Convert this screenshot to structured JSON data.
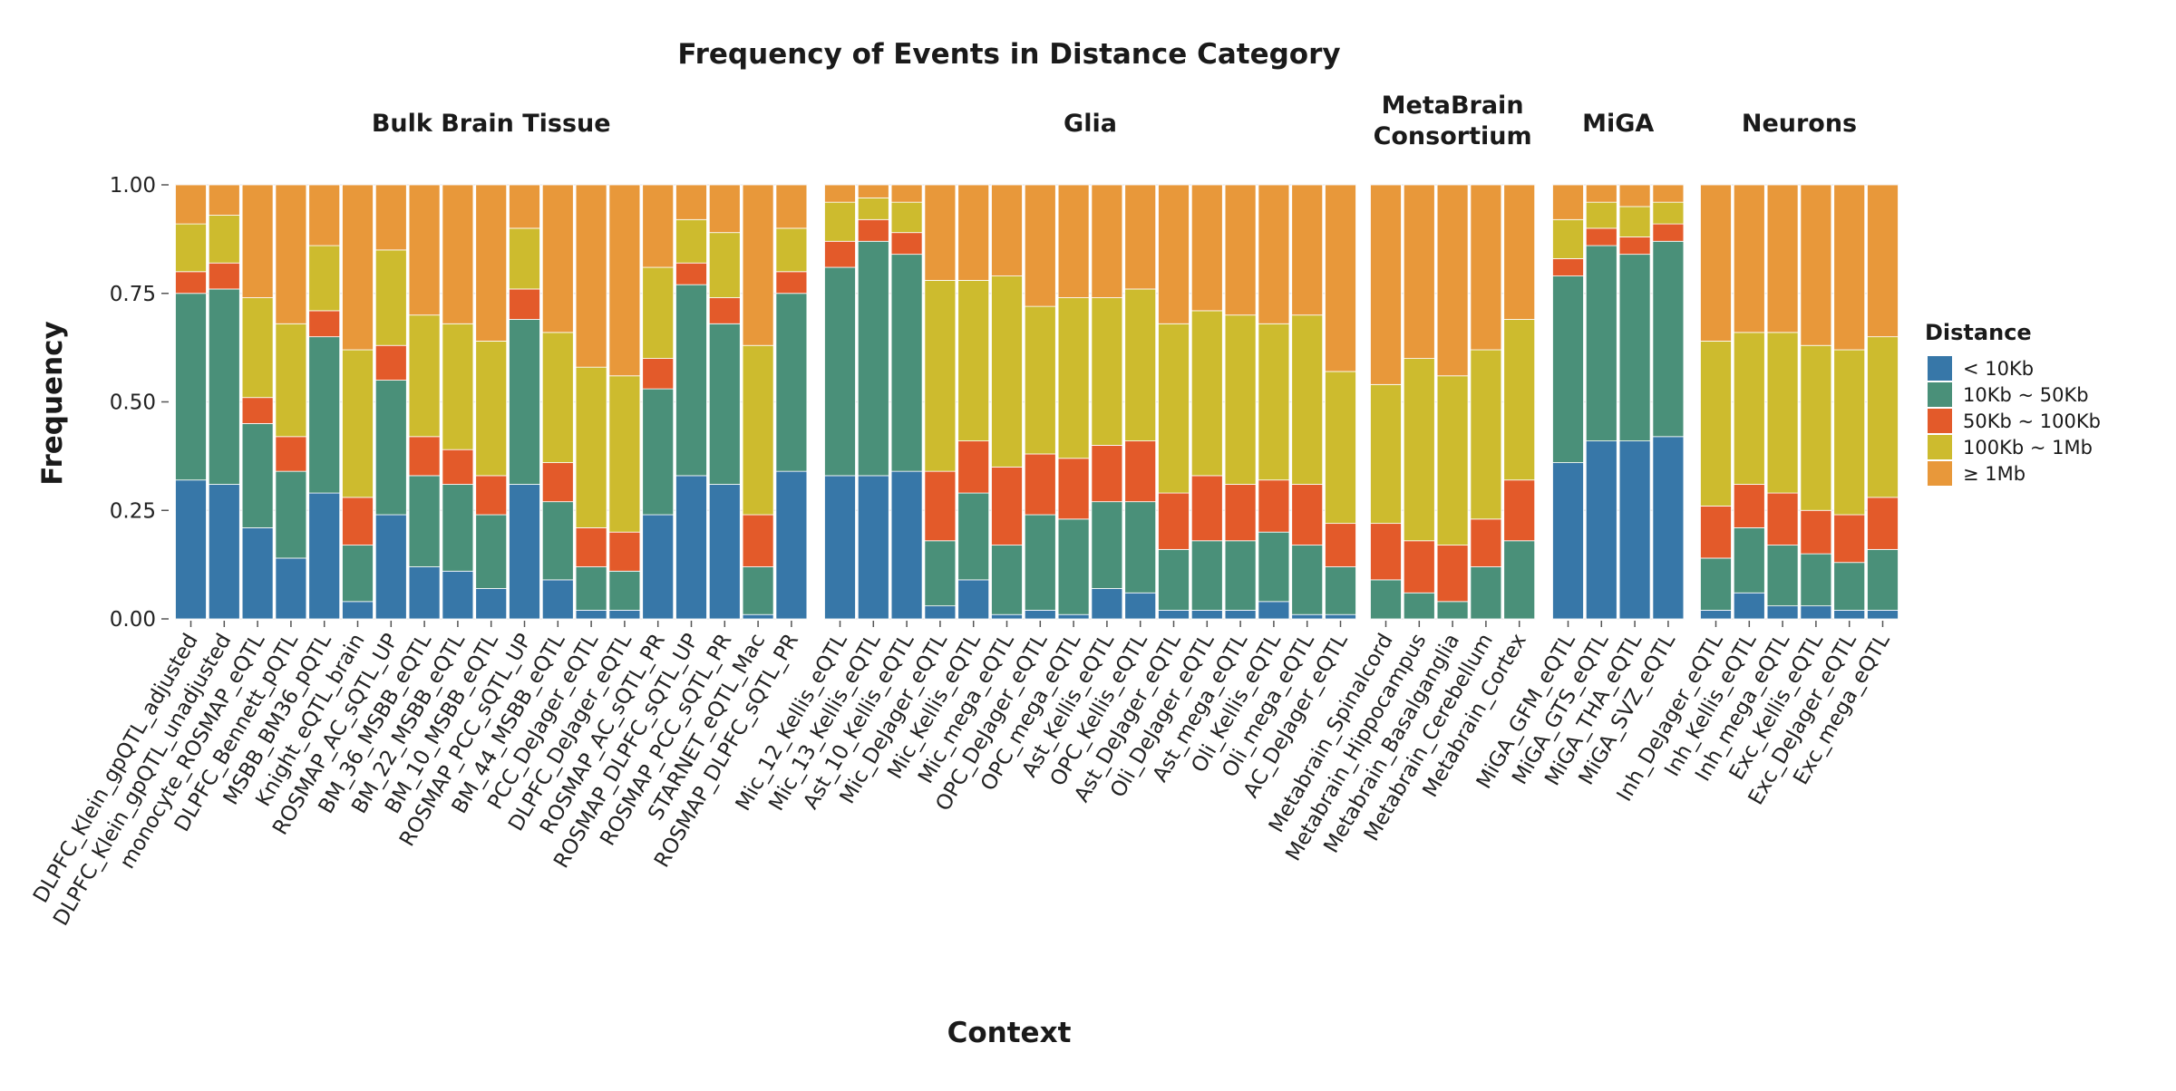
{
  "chart_data": {
    "type": "bar",
    "stacked": true,
    "normalized": true,
    "title": "Frequency of Events in Distance Category",
    "xlabel": "Context",
    "ylabel": "Frequency",
    "ylim": [
      0,
      1
    ],
    "yticks": [
      "0.00",
      "0.25",
      "0.50",
      "0.75",
      "1.00"
    ],
    "grid": true,
    "legend": {
      "title": "Distance",
      "placement": "right",
      "entries": [
        "< 10Kb",
        "10Kb ~ 50Kb",
        "50Kb ~ 100Kb",
        "100Kb ~ 1Mb",
        "≥ 1Mb"
      ]
    },
    "colors": [
      "#3777a8",
      "#4a9079",
      "#e35a2a",
      "#cdbb2e",
      "#e8983a"
    ],
    "facets": [
      {
        "title_lines": [
          "Bulk Brain Tissue"
        ],
        "bars": [
          {
            "name": "DLPFC_Klein_gpQTL_adjusted",
            "values": [
              0.32,
              0.43,
              0.05,
              0.11,
              0.09
            ]
          },
          {
            "name": "DLPFC_Klein_gpQTL_unadjusted",
            "values": [
              0.31,
              0.45,
              0.06,
              0.11,
              0.07
            ]
          },
          {
            "name": "monocyte_ROSMAP_eQTL",
            "values": [
              0.21,
              0.24,
              0.06,
              0.23,
              0.26
            ]
          },
          {
            "name": "DLPFC_Bennett_pQTL",
            "values": [
              0.14,
              0.2,
              0.08,
              0.26,
              0.32
            ]
          },
          {
            "name": "MSBB_BM36_pQTL",
            "values": [
              0.29,
              0.36,
              0.06,
              0.15,
              0.14
            ]
          },
          {
            "name": "Knight_eQTL_brain",
            "values": [
              0.04,
              0.13,
              0.11,
              0.34,
              0.38
            ]
          },
          {
            "name": "ROSMAP_AC_sQTL_UP",
            "values": [
              0.24,
              0.31,
              0.08,
              0.22,
              0.15
            ]
          },
          {
            "name": "BM_36_MSBB_eQTL",
            "values": [
              0.12,
              0.21,
              0.09,
              0.28,
              0.3
            ]
          },
          {
            "name": "BM_22_MSBB_eQTL",
            "values": [
              0.11,
              0.2,
              0.08,
              0.29,
              0.32
            ]
          },
          {
            "name": "BM_10_MSBB_eQTL",
            "values": [
              0.07,
              0.17,
              0.09,
              0.31,
              0.36
            ]
          },
          {
            "name": "ROSMAP_PCC_sQTL_UP",
            "values": [
              0.31,
              0.38,
              0.07,
              0.14,
              0.1
            ]
          },
          {
            "name": "BM_44_MSBB_eQTL",
            "values": [
              0.09,
              0.18,
              0.09,
              0.3,
              0.34
            ]
          },
          {
            "name": "PCC_DeJager_eQTL",
            "values": [
              0.02,
              0.1,
              0.09,
              0.37,
              0.42
            ]
          },
          {
            "name": "DLPFC_DeJager_eQTL",
            "values": [
              0.02,
              0.09,
              0.09,
              0.36,
              0.44
            ]
          },
          {
            "name": "ROSMAP_AC_sQTL_PR",
            "values": [
              0.24,
              0.29,
              0.07,
              0.21,
              0.19
            ]
          },
          {
            "name": "ROSMAP_DLPFC_sQTL_UP",
            "values": [
              0.33,
              0.44,
              0.05,
              0.1,
              0.08
            ]
          },
          {
            "name": "ROSMAP_PCC_sQTL_PR",
            "values": [
              0.31,
              0.37,
              0.06,
              0.15,
              0.11
            ]
          },
          {
            "name": "STARNET_eQTL_Mac",
            "values": [
              0.01,
              0.11,
              0.12,
              0.39,
              0.37
            ]
          },
          {
            "name": "ROSMAP_DLPFC_sQTL_PR",
            "values": [
              0.34,
              0.41,
              0.05,
              0.1,
              0.1
            ]
          }
        ]
      },
      {
        "title_lines": [
          "Glia"
        ],
        "bars": [
          {
            "name": "Mic_12_Kellis_eQTL",
            "values": [
              0.33,
              0.48,
              0.06,
              0.09,
              0.04
            ]
          },
          {
            "name": "Mic_13_Kellis_eQTL",
            "values": [
              0.33,
              0.54,
              0.05,
              0.05,
              0.03
            ]
          },
          {
            "name": "Ast_10_Kellis_eQTL",
            "values": [
              0.34,
              0.5,
              0.05,
              0.07,
              0.04
            ]
          },
          {
            "name": "Mic_DeJager_eQTL",
            "values": [
              0.03,
              0.15,
              0.16,
              0.44,
              0.22
            ]
          },
          {
            "name": "Mic_Kellis_eQTL",
            "values": [
              0.09,
              0.2,
              0.12,
              0.37,
              0.22
            ]
          },
          {
            "name": "Mic_mega_eQTL",
            "values": [
              0.01,
              0.16,
              0.18,
              0.44,
              0.21
            ]
          },
          {
            "name": "OPC_DeJager_eQTL",
            "values": [
              0.02,
              0.22,
              0.14,
              0.34,
              0.28
            ]
          },
          {
            "name": "OPC_mega_eQTL",
            "values": [
              0.01,
              0.22,
              0.14,
              0.37,
              0.26
            ]
          },
          {
            "name": "Ast_Kellis_eQTL",
            "values": [
              0.07,
              0.2,
              0.13,
              0.34,
              0.26
            ]
          },
          {
            "name": "OPC_Kellis_eQTL",
            "values": [
              0.06,
              0.21,
              0.14,
              0.35,
              0.24
            ]
          },
          {
            "name": "Ast_DeJager_eQTL",
            "values": [
              0.02,
              0.14,
              0.13,
              0.39,
              0.32
            ]
          },
          {
            "name": "Oli_DeJager_eQTL",
            "values": [
              0.02,
              0.16,
              0.15,
              0.38,
              0.29
            ]
          },
          {
            "name": "Ast_mega_eQTL",
            "values": [
              0.02,
              0.16,
              0.13,
              0.39,
              0.3
            ]
          },
          {
            "name": "Oli_Kellis_eQTL",
            "values": [
              0.04,
              0.16,
              0.12,
              0.36,
              0.32
            ]
          },
          {
            "name": "Oli_mega_eQTL",
            "values": [
              0.01,
              0.16,
              0.14,
              0.39,
              0.3
            ]
          },
          {
            "name": "AC_DeJager_eQTL",
            "values": [
              0.01,
              0.11,
              0.1,
              0.35,
              0.43
            ]
          }
        ]
      },
      {
        "title_lines": [
          "MetaBrain",
          "Consortium"
        ],
        "bars": [
          {
            "name": "Metabrain_Spinalcord",
            "values": [
              0.0,
              0.09,
              0.13,
              0.32,
              0.46
            ]
          },
          {
            "name": "Metabrain_Hippocampus",
            "values": [
              0.0,
              0.06,
              0.12,
              0.42,
              0.4
            ]
          },
          {
            "name": "Metabrain_Basalganglia",
            "values": [
              0.0,
              0.04,
              0.13,
              0.39,
              0.44
            ]
          },
          {
            "name": "Metabrain_Cerebellum",
            "values": [
              0.0,
              0.12,
              0.11,
              0.39,
              0.38
            ]
          },
          {
            "name": "Metabrain_Cortex",
            "values": [
              0.0,
              0.18,
              0.14,
              0.37,
              0.31
            ]
          }
        ]
      },
      {
        "title_lines": [
          "MiGA"
        ],
        "bars": [
          {
            "name": "MiGA_GFM_eQTL",
            "values": [
              0.36,
              0.43,
              0.04,
              0.09,
              0.08
            ]
          },
          {
            "name": "MiGA_GTS_eQTL",
            "values": [
              0.41,
              0.45,
              0.04,
              0.06,
              0.04
            ]
          },
          {
            "name": "MiGA_THA_eQTL",
            "values": [
              0.41,
              0.43,
              0.04,
              0.07,
              0.05
            ]
          },
          {
            "name": "MiGA_SVZ_eQTL",
            "values": [
              0.42,
              0.45,
              0.04,
              0.05,
              0.04
            ]
          }
        ]
      },
      {
        "title_lines": [
          "Neurons"
        ],
        "bars": [
          {
            "name": "Inh_DeJager_eQTL",
            "values": [
              0.02,
              0.12,
              0.12,
              0.38,
              0.36
            ]
          },
          {
            "name": "Inh_Kellis_eQTL",
            "values": [
              0.06,
              0.15,
              0.1,
              0.35,
              0.34
            ]
          },
          {
            "name": "Inh_mega_eQTL",
            "values": [
              0.03,
              0.14,
              0.12,
              0.37,
              0.34
            ]
          },
          {
            "name": "Exc_Kellis_eQTL",
            "values": [
              0.03,
              0.12,
              0.1,
              0.38,
              0.37
            ]
          },
          {
            "name": "Exc_DeJager_eQTL",
            "values": [
              0.02,
              0.11,
              0.11,
              0.38,
              0.38
            ]
          },
          {
            "name": "Exc_mega_eQTL",
            "values": [
              0.02,
              0.14,
              0.12,
              0.37,
              0.35
            ]
          }
        ]
      }
    ]
  }
}
